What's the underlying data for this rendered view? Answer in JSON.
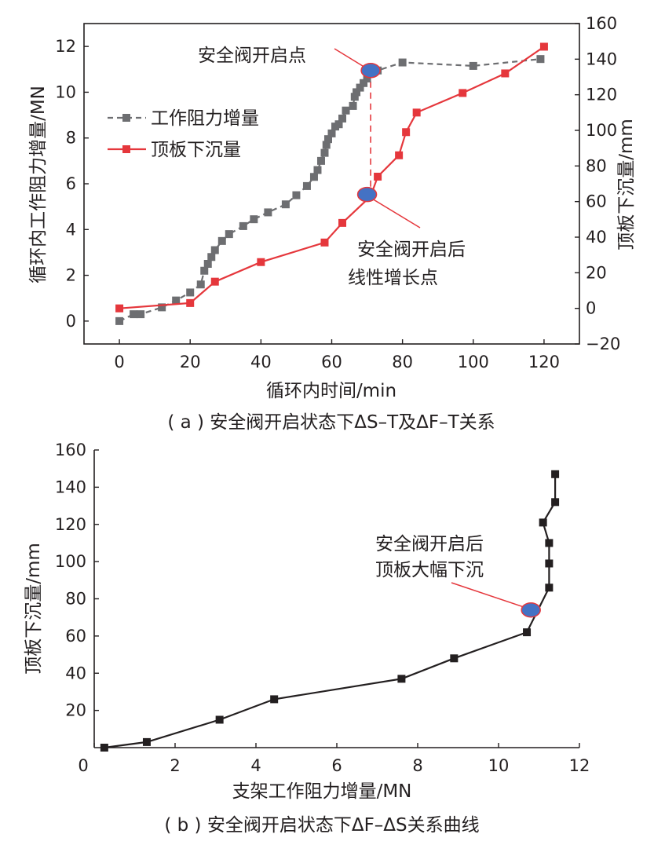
{
  "chart_data": [
    {
      "type": "line",
      "caption": "( a ) 安全阀开启状态下ΔS–T及ΔF–T关系",
      "xlabel": "循环内时间/min",
      "ylabel_left": "循环内工作阻力增量/MN",
      "ylabel_right": "顶板下沉量/mm",
      "xlim": [
        -10,
        130
      ],
      "ylim_left": [
        -1,
        13
      ],
      "ylim_right": [
        -20,
        160
      ],
      "x_ticks": [
        0,
        20,
        40,
        60,
        80,
        100,
        120
      ],
      "y_left_ticks": [
        0,
        2,
        4,
        6,
        8,
        10,
        12
      ],
      "y_right_ticks": [
        -20,
        0,
        20,
        40,
        60,
        80,
        100,
        120,
        140,
        160
      ],
      "legend_position": "upper-left",
      "series": [
        {
          "name": "工作阻力增量",
          "axis": "left",
          "color": "#6d6e71",
          "line_style": "dashed",
          "marker": "square",
          "x": [
            0,
            4,
            6,
            12,
            16,
            20,
            23,
            24,
            25,
            26,
            27,
            29,
            31,
            35,
            38,
            42,
            47,
            50,
            53,
            55,
            56,
            57,
            58,
            58.5,
            59,
            60,
            61,
            62,
            63,
            64,
            66,
            66.5,
            67,
            68,
            69,
            70,
            71,
            73,
            80,
            100,
            119
          ],
          "y": [
            0,
            0.3,
            0.3,
            0.6,
            0.9,
            1.25,
            1.6,
            2.2,
            2.5,
            2.8,
            3.1,
            3.5,
            3.8,
            4.15,
            4.45,
            4.75,
            5.1,
            5.5,
            5.9,
            6.3,
            6.6,
            7.0,
            7.35,
            7.7,
            7.95,
            8.2,
            8.5,
            8.6,
            8.85,
            9.2,
            9.4,
            9.8,
            10.0,
            10.2,
            10.4,
            10.6,
            10.9,
            10.95,
            11.3,
            11.15,
            11.45
          ]
        },
        {
          "name": "顶板下沉量",
          "axis": "right",
          "color": "#e5373c",
          "line_style": "solid",
          "marker": "square",
          "x": [
            0,
            20,
            27,
            40,
            58,
            63,
            71,
            73,
            79,
            81,
            84,
            97,
            109,
            120
          ],
          "y": [
            0,
            3,
            15,
            26,
            37,
            48,
            63,
            74,
            86,
            99,
            110,
            121,
            132,
            147
          ]
        }
      ],
      "annotations": [
        {
          "text": "安全阀开启点",
          "target_x": 71,
          "target_y_left": 10.95
        },
        {
          "text_lines": [
            "安全阀开启后",
            "线性增长点"
          ],
          "target_x": 70,
          "target_y_right": 64
        }
      ],
      "guide_line": {
        "x": 71,
        "from_y_left": 10.95,
        "to_y_right": 63,
        "color": "#e5373c",
        "style": "dashed"
      }
    },
    {
      "type": "line",
      "caption": "( b ) 安全阀开启状态下ΔF–ΔS关系曲线",
      "xlabel": "支架工作阻力增量/MN",
      "ylabel": "顶板下沉量/mm",
      "xlim": [
        0,
        12
      ],
      "ylim": [
        0,
        160
      ],
      "x_ticks": [
        0,
        2,
        4,
        6,
        8,
        10,
        12
      ],
      "y_ticks": [
        20,
        40,
        60,
        80,
        100,
        120,
        140,
        160
      ],
      "series": [
        {
          "color": "#231f20",
          "marker": "square",
          "x": [
            0.25,
            1.3,
            3.1,
            4.45,
            7.6,
            8.9,
            10.7,
            11.25,
            11.25,
            11.25,
            11.1,
            11.4,
            11.4
          ],
          "y": [
            0,
            3,
            15,
            26,
            37,
            48,
            62,
            86,
            99,
            110,
            121,
            132,
            147
          ]
        }
      ],
      "annotations": [
        {
          "text_lines": [
            "安全阀开启后",
            "顶板大幅下沉"
          ],
          "target_x": 10.8,
          "target_y": 74
        }
      ]
    }
  ],
  "colors": {
    "ink": "#231f20",
    "gray_series": "#6d6e71",
    "red_series": "#e5373c",
    "highlight_fill": "#4472c4"
  }
}
